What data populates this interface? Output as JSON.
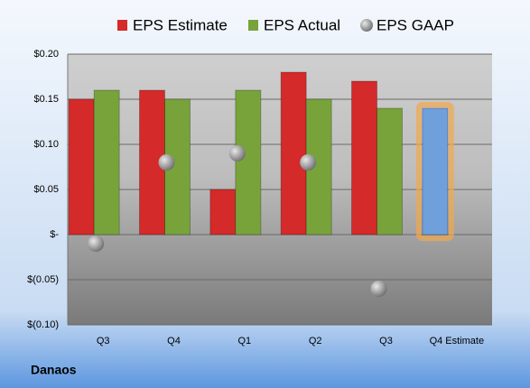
{
  "chart_data": {
    "type": "bar",
    "categories": [
      "Q3",
      "Q4",
      "Q1",
      "Q2",
      "Q3",
      "Q4 Estimate"
    ],
    "series": [
      {
        "name": "EPS Estimate",
        "color": "#d42a2a",
        "values": [
          0.15,
          0.16,
          0.05,
          0.18,
          0.17,
          0.14
        ]
      },
      {
        "name": "EPS Actual",
        "color": "#77a33a",
        "values": [
          0.16,
          0.15,
          0.16,
          0.15,
          0.14,
          null
        ]
      },
      {
        "name": "EPS GAAP",
        "color": "#9a9a9a",
        "marker": "bubble",
        "values": [
          -0.01,
          0.08,
          0.09,
          0.08,
          -0.06,
          null
        ]
      }
    ],
    "highlight": {
      "index": 5,
      "color": "#6fa0dc",
      "glow": "#f4a64a"
    },
    "ylim": [
      -0.1,
      0.2
    ],
    "yticks": [
      {
        "value": -0.1,
        "label": "$(0.10)"
      },
      {
        "value": -0.05,
        "label": "$(0.05)"
      },
      {
        "value": 0,
        "label": "$-"
      },
      {
        "value": 0.05,
        "label": "$0.05"
      },
      {
        "value": 0.1,
        "label": "$0.10"
      },
      {
        "value": 0.15,
        "label": "$0.15"
      },
      {
        "value": 0.2,
        "label": "$0.20"
      }
    ],
    "grid": true,
    "footer": "Danaos"
  }
}
